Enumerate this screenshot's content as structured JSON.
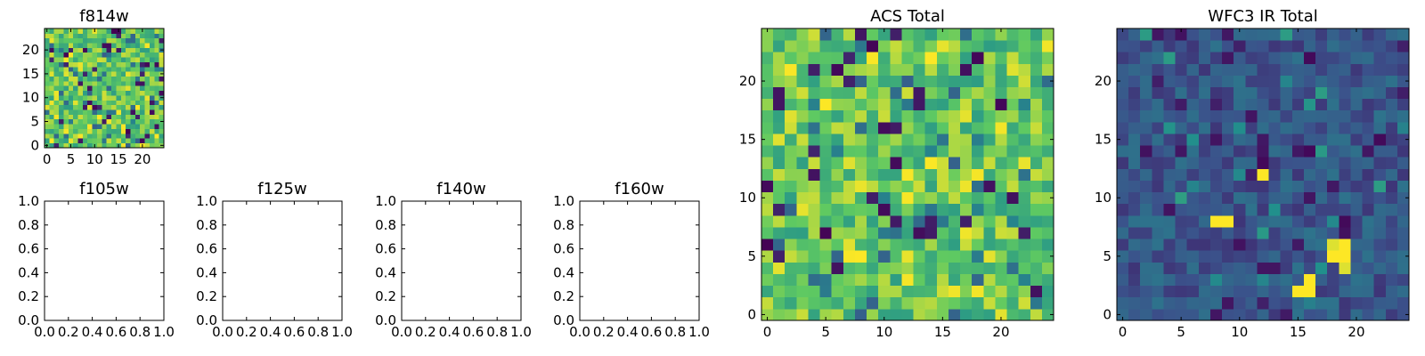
{
  "figure": {
    "title": ""
  },
  "colormap": [
    "#440154",
    "#3b528b",
    "#21918c",
    "#5ec962",
    "#fde725"
  ],
  "chart_data": [
    {
      "id": "f814w",
      "type": "heatmap",
      "title": "f814w",
      "xlim": [
        -0.5,
        24.5
      ],
      "ylim": [
        -0.5,
        24.5
      ],
      "xticks": [
        0,
        5,
        10,
        15,
        20
      ],
      "yticks": [
        0,
        5,
        10,
        15,
        20
      ],
      "xtick_labels": [
        "0",
        "5",
        "10",
        "15",
        "20"
      ],
      "ytick_labels": [
        "0",
        "5",
        "10",
        "15",
        "20"
      ],
      "grid_size": [
        25,
        25
      ],
      "value_range": [
        0,
        1
      ],
      "pixels": "random noise, mostly green-yellow (~0.55-0.9) with scattered dark purple/blue pixels"
    },
    {
      "id": "f105w",
      "type": "empty",
      "title": "f105w",
      "xlim": [
        0,
        1
      ],
      "ylim": [
        0,
        1
      ],
      "xticks": [
        0,
        0.2,
        0.4,
        0.6,
        0.8,
        1.0
      ],
      "yticks": [
        0,
        0.2,
        0.4,
        0.6,
        0.8,
        1.0
      ],
      "xtick_labels": [
        "0.0",
        "0.2",
        "0.4",
        "0.6",
        "0.8",
        "1.0"
      ],
      "ytick_labels": [
        "0.0",
        "0.2",
        "0.4",
        "0.6",
        "0.8",
        "1.0"
      ]
    },
    {
      "id": "f125w",
      "type": "empty",
      "title": "f125w",
      "xlim": [
        0,
        1
      ],
      "ylim": [
        0,
        1
      ],
      "xticks": [
        0,
        0.2,
        0.4,
        0.6,
        0.8,
        1.0
      ],
      "yticks": [
        0,
        0.2,
        0.4,
        0.6,
        0.8,
        1.0
      ],
      "xtick_labels": [
        "0.0",
        "0.2",
        "0.4",
        "0.6",
        "0.8",
        "1.0"
      ],
      "ytick_labels": [
        "0.0",
        "0.2",
        "0.4",
        "0.6",
        "0.8",
        "1.0"
      ]
    },
    {
      "id": "f140w",
      "type": "empty",
      "title": "f140w",
      "xlim": [
        0,
        1
      ],
      "ylim": [
        0,
        1
      ],
      "xticks": [
        0,
        0.2,
        0.4,
        0.6,
        0.8,
        1.0
      ],
      "yticks": [
        0,
        0.2,
        0.4,
        0.6,
        0.8,
        1.0
      ],
      "xtick_labels": [
        "0.0",
        "0.2",
        "0.4",
        "0.6",
        "0.8",
        "1.0"
      ],
      "ytick_labels": [
        "0.0",
        "0.2",
        "0.4",
        "0.6",
        "0.8",
        "1.0"
      ]
    },
    {
      "id": "f160w",
      "type": "empty",
      "title": "f160w",
      "xlim": [
        0,
        1
      ],
      "ylim": [
        0,
        1
      ],
      "xticks": [
        0,
        0.2,
        0.4,
        0.6,
        0.8,
        1.0
      ],
      "yticks": [
        0,
        0.2,
        0.4,
        0.6,
        0.8,
        1.0
      ],
      "xtick_labels": [
        "0.0",
        "0.2",
        "0.4",
        "0.6",
        "0.8",
        "1.0"
      ],
      "ytick_labels": [
        "0.0",
        "0.2",
        "0.4",
        "0.6",
        "0.8",
        "1.0"
      ]
    },
    {
      "id": "acs-total",
      "type": "heatmap",
      "title": "ACS Total",
      "xlim": [
        -0.5,
        24.5
      ],
      "ylim": [
        -0.5,
        24.5
      ],
      "xticks": [
        0,
        5,
        10,
        15,
        20
      ],
      "yticks": [
        0,
        5,
        10,
        15,
        20
      ],
      "xtick_labels": [
        "0",
        "5",
        "10",
        "15",
        "20"
      ],
      "ytick_labels": [
        "0",
        "5",
        "10",
        "15",
        "20"
      ],
      "grid_size": [
        25,
        25
      ],
      "value_range": [
        0,
        1
      ],
      "pixels": "random noise, mostly green (~0.55-0.9) with a few dark purple and bright yellow pixels"
    },
    {
      "id": "wfc3-ir-total",
      "type": "heatmap",
      "title": "WFC3 IR Total",
      "xlim": [
        -0.5,
        24.5
      ],
      "ylim": [
        -0.5,
        24.5
      ],
      "xticks": [
        0,
        5,
        10,
        15,
        20
      ],
      "yticks": [
        0,
        5,
        10,
        15,
        20
      ],
      "xtick_labels": [
        "0",
        "5",
        "10",
        "15",
        "20"
      ],
      "ytick_labels": [
        "0",
        "5",
        "10",
        "15",
        "20"
      ],
      "grid_size": [
        25,
        25
      ],
      "value_range": [
        0,
        1
      ],
      "pixels": "dark blue noise background (~0.15-0.35) with bright yellow sources",
      "bright_pixels": [
        {
          "x": 12,
          "y": 12,
          "value": 1.0
        },
        {
          "x": 8,
          "y": 8,
          "value": 1.0
        },
        {
          "x": 9,
          "y": 8,
          "value": 1.0
        },
        {
          "x": 18,
          "y": 6,
          "value": 0.95
        },
        {
          "x": 19,
          "y": 6,
          "value": 1.0
        },
        {
          "x": 18,
          "y": 5,
          "value": 1.0
        },
        {
          "x": 19,
          "y": 5,
          "value": 1.0
        },
        {
          "x": 19,
          "y": 4,
          "value": 0.95
        },
        {
          "x": 16,
          "y": 3,
          "value": 1.0
        },
        {
          "x": 15,
          "y": 2,
          "value": 1.0
        },
        {
          "x": 16,
          "y": 2,
          "value": 1.0
        }
      ]
    }
  ]
}
